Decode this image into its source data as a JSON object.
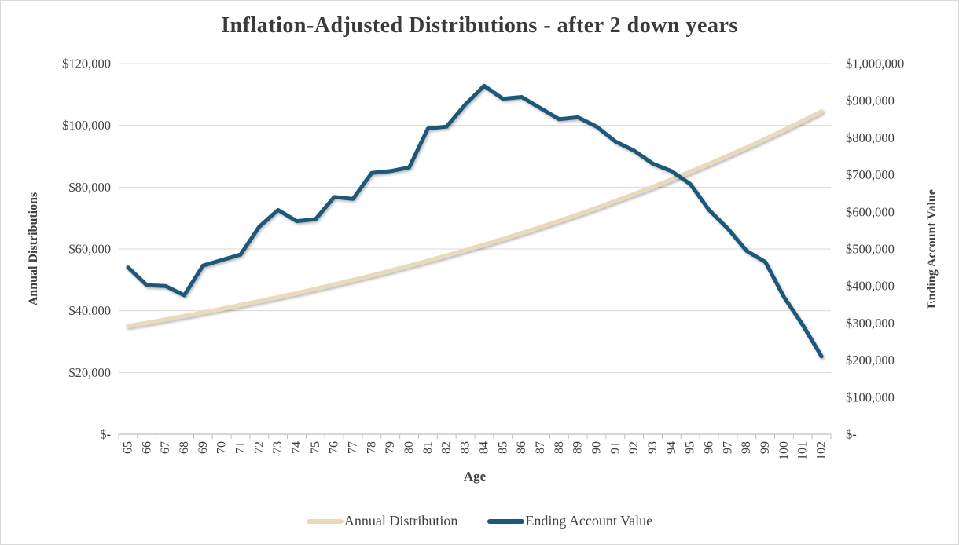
{
  "chart_data": {
    "type": "line",
    "title": "Inflation-Adjusted Distributions - after 2 down years",
    "xlabel": "Age",
    "grid": true,
    "legend_position": "bottom",
    "x_categories": [
      "65",
      "66",
      "67",
      "68",
      "69",
      "70",
      "71",
      "72",
      "73",
      "74",
      "75",
      "76",
      "77",
      "78",
      "79",
      "80",
      "81",
      "82",
      "83",
      "84",
      "85",
      "86",
      "87",
      "88",
      "89",
      "90",
      "91",
      "92",
      "93",
      "94",
      "95",
      "96",
      "97",
      "98",
      "99",
      "100",
      "101",
      "102"
    ],
    "left_axis": {
      "title": "Annual Distributions",
      "min": 0,
      "max": 120000,
      "tick_step": 20000,
      "tick_labels": [
        "$-",
        "$20,000",
        "$40,000",
        "$60,000",
        "$80,000",
        "$100,000",
        "$120,000"
      ]
    },
    "right_axis": {
      "title": "Ending Account Value",
      "min": 0,
      "max": 1000000,
      "tick_step": 100000,
      "tick_labels": [
        "$-",
        "$100,000",
        "$200,000",
        "$300,000",
        "$400,000",
        "$500,000",
        "$600,000",
        "$700,000",
        "$800,000",
        "$900,000",
        "$1,000,000"
      ]
    },
    "series": [
      {
        "name": "Annual Distribution",
        "axis": "left",
        "color": "#E8DABB",
        "values": [
          35000,
          36050,
          37132,
          38245,
          39393,
          40575,
          41792,
          43046,
          44337,
          45667,
          47037,
          48448,
          49902,
          51399,
          52941,
          54529,
          56165,
          57850,
          59585,
          61373,
          63214,
          65110,
          67064,
          69076,
          71148,
          73282,
          75481,
          77745,
          80077,
          82480,
          84954,
          87503,
          90128,
          92832,
          95617,
          98485,
          101440,
          104483
        ]
      },
      {
        "name": "Ending Account Value",
        "axis": "right",
        "color": "#1F587A",
        "values": [
          450000,
          402000,
          400000,
          375000,
          455000,
          470000,
          485000,
          560000,
          605000,
          575000,
          580000,
          640000,
          635000,
          705000,
          710000,
          720000,
          825000,
          830000,
          890000,
          940000,
          905000,
          910000,
          880000,
          850000,
          855000,
          830000,
          790000,
          765000,
          730000,
          710000,
          675000,
          605000,
          555000,
          495000,
          465000,
          370000,
          295000,
          210000
        ]
      }
    ]
  },
  "colors": {
    "background": "#FFFFFF",
    "border": "#D9D9D9",
    "gridline": "#D9D9D9",
    "axis_line": "#BFBFBF",
    "tick_mark": "#BFBFBF",
    "text": "#404040",
    "title_text": "#3A3A3A"
  }
}
